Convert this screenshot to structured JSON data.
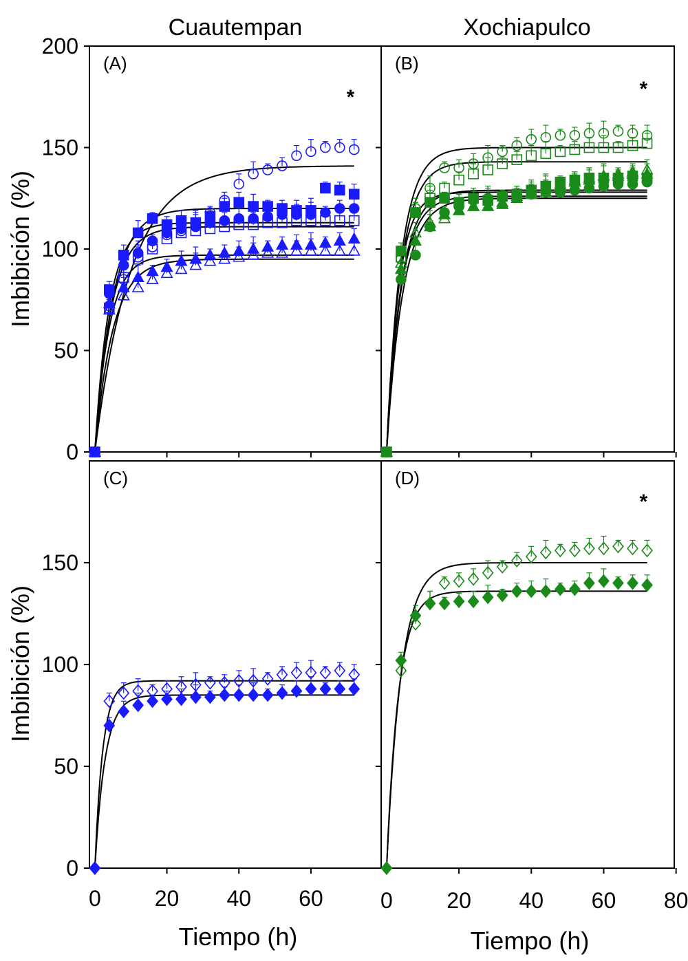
{
  "figure": {
    "column_titles": [
      "Cuautempan",
      "Xochiapulco"
    ],
    "ylabel": "Imbibición (%)",
    "xlabels": {
      "left": "Tiempo (h)",
      "right": "Tiempo (h)"
    }
  },
  "colors": {
    "blue": "#1a1aff",
    "green": "#1a8a1a",
    "axis": "#000000"
  },
  "chart_data": [
    {
      "panel": "A",
      "label": "(A)",
      "type": "scatter",
      "title": "Cuautempan",
      "xlabel": "",
      "ylabel": "Imbibición (%)",
      "xlim": [
        -1.5,
        79.5
      ],
      "ylim": [
        0,
        200
      ],
      "yticks": [
        0,
        50,
        100,
        150,
        200
      ],
      "ytick_labels": [
        "0",
        "50",
        "100",
        "150",
        "200"
      ],
      "xticks": [
        0,
        20,
        40,
        60
      ],
      "xtick_labels": [],
      "annotation": "*",
      "annotation_pos": [
        71,
        175
      ],
      "color": "#1a1aff",
      "x": [
        0,
        4,
        8,
        12,
        16,
        20,
        24,
        28,
        32,
        36,
        40,
        44,
        48,
        52,
        56,
        60,
        64,
        68,
        72
      ],
      "series": [
        {
          "name": "open circle",
          "marker": "circle",
          "filled": false,
          "values": [
            0,
            72,
            85,
            96,
            101,
            107,
            109,
            112,
            118,
            124,
            132,
            137,
            139,
            141,
            146,
            148,
            150,
            150,
            149
          ],
          "fit": {
            "a": 141,
            "k": 0.1
          }
        },
        {
          "name": "filled square",
          "marker": "square",
          "filled": true,
          "values": [
            0,
            80,
            97,
            108,
            115,
            112,
            114,
            113,
            116,
            121,
            123,
            121,
            121,
            120,
            119,
            119,
            130,
            129,
            127
          ],
          "fit": {
            "a": 120,
            "k": 0.2
          }
        },
        {
          "name": "filled circle",
          "marker": "circle",
          "filled": true,
          "values": [
            0,
            78,
            92,
            98,
            104,
            108,
            110,
            111,
            113,
            114,
            115,
            115,
            116,
            117,
            117,
            117,
            118,
            120,
            120
          ],
          "fit": {
            "a": 113,
            "k": 0.25
          }
        },
        {
          "name": "open square",
          "marker": "square",
          "filled": false,
          "values": [
            0,
            71,
            86,
            95,
            100,
            105,
            108,
            109,
            110,
            111,
            112,
            112,
            113,
            113,
            114,
            114,
            114,
            114,
            114
          ],
          "fit": {
            "a": 111,
            "k": 0.22
          }
        },
        {
          "name": "filled triangle",
          "marker": "triangle",
          "filled": true,
          "values": [
            0,
            73,
            81,
            86,
            89,
            91,
            94,
            95,
            97,
            98,
            99,
            100,
            101,
            102,
            102,
            102,
            103,
            104,
            105
          ],
          "fit": {
            "a": 97,
            "k": 0.25
          }
        },
        {
          "name": "open triangle",
          "marker": "triangle",
          "filled": false,
          "values": [
            0,
            70,
            77,
            81,
            85,
            88,
            90,
            92,
            94,
            95,
            96,
            97,
            98,
            98,
            99,
            99,
            99,
            99,
            99
          ],
          "fit": {
            "a": 95,
            "k": 0.2
          }
        }
      ]
    },
    {
      "panel": "B",
      "label": "(B)",
      "type": "scatter",
      "title": "Xochiapulco",
      "xlabel": "",
      "ylabel": "",
      "xlim": [
        -1.5,
        79.5
      ],
      "ylim": [
        0,
        200
      ],
      "yticks": [
        0,
        50,
        100,
        150,
        200
      ],
      "ytick_labels": [],
      "xticks": [
        0,
        20,
        40,
        60,
        80
      ],
      "xtick_labels": [],
      "annotation": "*",
      "annotation_pos": [
        71,
        179
      ],
      "color": "#1a8a1a",
      "x": [
        0,
        4,
        8,
        12,
        16,
        20,
        24,
        28,
        32,
        36,
        40,
        44,
        48,
        52,
        56,
        60,
        64,
        68,
        72
      ],
      "series": [
        {
          "name": "open circle",
          "marker": "circle",
          "filled": false,
          "values": [
            0,
            95,
            120,
            130,
            140,
            140,
            142,
            145,
            148,
            151,
            154,
            155,
            156,
            156,
            157,
            157,
            158,
            157,
            156
          ],
          "fit": {
            "a": 150,
            "k": 0.25
          }
        },
        {
          "name": "open square",
          "marker": "square",
          "filled": false,
          "values": [
            0,
            96,
            118,
            125,
            130,
            134,
            137,
            139,
            142,
            144,
            146,
            147,
            148,
            149,
            150,
            150,
            150,
            151,
            152
          ],
          "fit": {
            "a": 143,
            "k": 0.25
          }
        },
        {
          "name": "filled square",
          "marker": "square",
          "filled": true,
          "values": [
            0,
            99,
            118,
            123,
            125,
            123,
            125,
            124,
            126,
            127,
            129,
            131,
            133,
            134,
            135,
            135,
            135,
            136,
            135
          ],
          "fit": {
            "a": 128,
            "k": 0.3
          }
        },
        {
          "name": "open triangle",
          "marker": "triangle",
          "filled": false,
          "values": [
            0,
            93,
            108,
            113,
            115,
            119,
            121,
            121,
            123,
            126,
            128,
            130,
            132,
            134,
            135,
            136,
            137,
            138,
            139
          ],
          "fit": {
            "a": 129,
            "k": 0.25
          }
        },
        {
          "name": "filled triangle",
          "marker": "triangle",
          "filled": true,
          "values": [
            0,
            90,
            104,
            111,
            117,
            119,
            121,
            121,
            122,
            125,
            127,
            128,
            131,
            133,
            134,
            136,
            136,
            137,
            137
          ],
          "fit": {
            "a": 126,
            "k": 0.25
          }
        },
        {
          "name": "filled circle",
          "marker": "circle",
          "filled": true,
          "values": [
            0,
            85,
            97,
            111,
            118,
            121,
            124,
            125,
            126,
            127,
            127,
            128,
            128,
            129,
            130,
            131,
            132,
            132,
            133
          ],
          "fit": {
            "a": 125,
            "k": 0.22
          }
        }
      ]
    },
    {
      "panel": "C",
      "label": "(C)",
      "type": "scatter",
      "title": "",
      "xlabel": "Tiempo (h)",
      "ylabel": "Imbibición (%)",
      "xlim": [
        -1.5,
        79.5
      ],
      "ylim": [
        0,
        200
      ],
      "yticks": [
        0,
        50,
        100,
        150
      ],
      "ytick_labels": [
        "0",
        "50",
        "100",
        "150"
      ],
      "xticks": [
        0,
        20,
        40,
        60
      ],
      "xtick_labels": [
        "0",
        "20",
        "40",
        "60"
      ],
      "annotation": "",
      "annotation_pos": [
        0,
        0
      ],
      "color": "#1a1aff",
      "x": [
        0,
        4,
        8,
        12,
        16,
        20,
        24,
        28,
        32,
        36,
        40,
        44,
        48,
        52,
        56,
        60,
        64,
        68,
        72
      ],
      "series": [
        {
          "name": "open diamond",
          "marker": "diamond",
          "filled": false,
          "values": [
            0,
            82,
            86,
            87,
            87,
            88,
            89,
            90,
            91,
            91,
            92,
            92,
            93,
            95,
            96,
            96,
            96,
            97,
            95
          ],
          "fit": {
            "a": 92,
            "k": 0.45
          }
        },
        {
          "name": "filled diamond",
          "marker": "diamond",
          "filled": true,
          "values": [
            0,
            70,
            77,
            80,
            82,
            83,
            83,
            84,
            84,
            85,
            85,
            85,
            85,
            86,
            87,
            88,
            88,
            88,
            88
          ],
          "fit": {
            "a": 85,
            "k": 0.35
          }
        }
      ]
    },
    {
      "panel": "D",
      "label": "(D)",
      "type": "scatter",
      "title": "",
      "xlabel": "Tiempo (h)",
      "ylabel": "",
      "xlim": [
        -1.5,
        79.5
      ],
      "ylim": [
        0,
        200
      ],
      "yticks": [
        0,
        50,
        100,
        150
      ],
      "ytick_labels": [],
      "xticks": [
        0,
        20,
        40,
        60,
        80
      ],
      "xtick_labels": [
        "0",
        "20",
        "40",
        "60",
        "80"
      ],
      "annotation": "*",
      "annotation_pos": [
        71,
        180
      ],
      "color": "#1a8a1a",
      "x": [
        0,
        4,
        8,
        12,
        16,
        20,
        24,
        28,
        32,
        36,
        40,
        44,
        48,
        52,
        56,
        60,
        64,
        68,
        72
      ],
      "series": [
        {
          "name": "open diamond",
          "marker": "diamond",
          "filled": false,
          "values": [
            0,
            97,
            120,
            130,
            140,
            141,
            142,
            145,
            148,
            151,
            153,
            155,
            156,
            156,
            157,
            157,
            158,
            157,
            156
          ],
          "fit": {
            "a": 150,
            "k": 0.25
          }
        },
        {
          "name": "filled diamond",
          "marker": "diamond",
          "filled": true,
          "values": [
            0,
            102,
            124,
            130,
            130,
            131,
            131,
            133,
            134,
            136,
            136,
            136,
            137,
            137,
            140,
            141,
            140,
            140,
            139
          ],
          "fit": {
            "a": 136,
            "k": 0.3
          }
        }
      ]
    }
  ]
}
